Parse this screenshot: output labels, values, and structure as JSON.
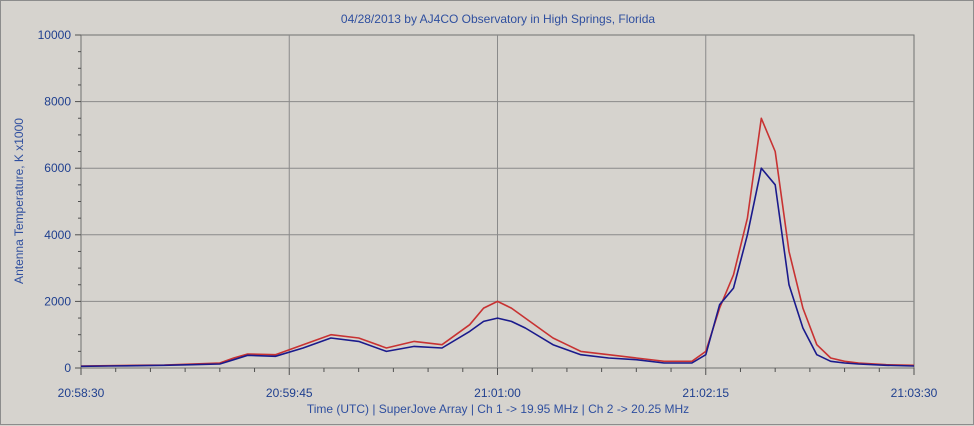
{
  "chart_data": {
    "type": "line",
    "title": "04/28/2013  by  AJ4CO Observatory  in  High Springs, Florida",
    "ylabel": "Antenna Temperature, K x1000",
    "xlabel": "Time (UTC)  |  SuperJove Array  |  Ch 1 -> 19.95 MHz  |  Ch 2 -> 20.25 MHz",
    "x_tick_labels": [
      "20:58:30",
      "20:59:45",
      "21:01:00",
      "21:02:15",
      "21:03:30"
    ],
    "y_tick_labels": [
      "0",
      "2000",
      "4000",
      "6000",
      "8000",
      "10000"
    ],
    "xlim": [
      0,
      300
    ],
    "ylim": [
      0,
      10000
    ],
    "grid": true,
    "series": [
      {
        "color": "#c83232",
        "x": [
          0,
          10,
          20,
          30,
          40,
          50,
          55,
          60,
          70,
          80,
          90,
          100,
          110,
          120,
          130,
          140,
          145,
          150,
          155,
          160,
          170,
          175,
          180,
          190,
          200,
          210,
          220,
          225,
          230,
          235,
          240,
          245,
          250,
          255,
          260,
          265,
          270,
          275,
          280,
          290,
          300
        ],
        "values": [
          60,
          70,
          80,
          90,
          120,
          150,
          300,
          420,
          400,
          700,
          1000,
          900,
          600,
          800,
          700,
          1300,
          1800,
          2000,
          1800,
          1500,
          900,
          700,
          500,
          400,
          300,
          200,
          200,
          500,
          1800,
          2800,
          4500,
          7500,
          6500,
          3500,
          1800,
          700,
          300,
          200,
          150,
          100,
          80
        ]
      },
      {
        "color": "#1a1a8c",
        "x": [
          0,
          10,
          20,
          30,
          40,
          50,
          55,
          60,
          70,
          80,
          90,
          100,
          110,
          120,
          130,
          140,
          145,
          150,
          155,
          160,
          170,
          175,
          180,
          190,
          200,
          210,
          220,
          225,
          230,
          235,
          240,
          245,
          250,
          255,
          260,
          265,
          270,
          275,
          280,
          290,
          300
        ],
        "values": [
          50,
          60,
          70,
          80,
          100,
          120,
          250,
          380,
          350,
          600,
          900,
          800,
          500,
          650,
          600,
          1100,
          1400,
          1500,
          1400,
          1200,
          700,
          550,
          400,
          300,
          250,
          150,
          150,
          400,
          1900,
          2400,
          4000,
          6000,
          5500,
          2500,
          1200,
          400,
          200,
          150,
          120,
          80,
          60
        ]
      }
    ]
  }
}
